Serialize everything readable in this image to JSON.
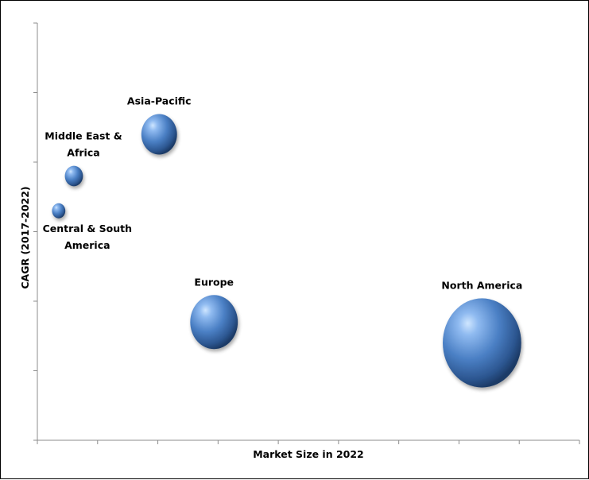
{
  "chart_data": {
    "type": "bubble",
    "title": "",
    "xlabel": "Market Size in 2022",
    "ylabel": "CAGR (2017-2022)",
    "xlim": [
      0,
      8.9
    ],
    "ylim": [
      0,
      6
    ],
    "x_ticks_count": 9,
    "y_ticks_count": 6,
    "grid": false,
    "legend": "none",
    "bubble_color": "#3f6fb0",
    "series": [
      {
        "label": [
          "Asia-Pacific"
        ],
        "x": 2.0,
        "y": 4.4,
        "size": 0.75
      },
      {
        "label": [
          "Middle East &",
          "Africa"
        ],
        "x": 0.6,
        "y": 3.8,
        "size": 0.38
      },
      {
        "label": [
          "Central & South",
          "America"
        ],
        "x": 0.35,
        "y": 3.3,
        "size": 0.28
      },
      {
        "label": [
          "Europe"
        ],
        "x": 2.9,
        "y": 1.7,
        "size": 1.0
      },
      {
        "label": [
          "North America"
        ],
        "x": 7.3,
        "y": 1.4,
        "size": 1.65
      }
    ]
  }
}
